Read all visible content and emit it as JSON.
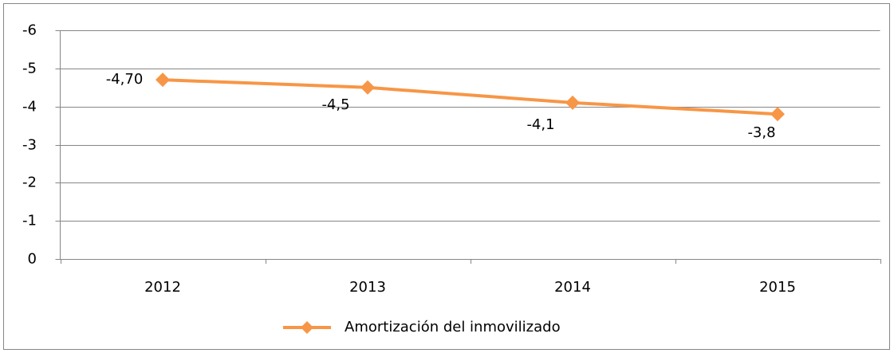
{
  "chart_data": {
    "type": "line",
    "categories": [
      "2012",
      "2013",
      "2014",
      "2015"
    ],
    "series": [
      {
        "name": "Amortización del inmovilizado",
        "color": "#f79646",
        "values": [
          -4.7,
          -4.5,
          -4.1,
          -3.8
        ],
        "value_labels": [
          "-4,70",
          "-4,5",
          "-4,1",
          "-3,8"
        ]
      }
    ],
    "ylim": [
      0,
      -6
    ],
    "yticks": [
      0,
      -1,
      -2,
      -3,
      -4,
      -5,
      -6
    ],
    "grid": true,
    "legend": "bottom"
  }
}
